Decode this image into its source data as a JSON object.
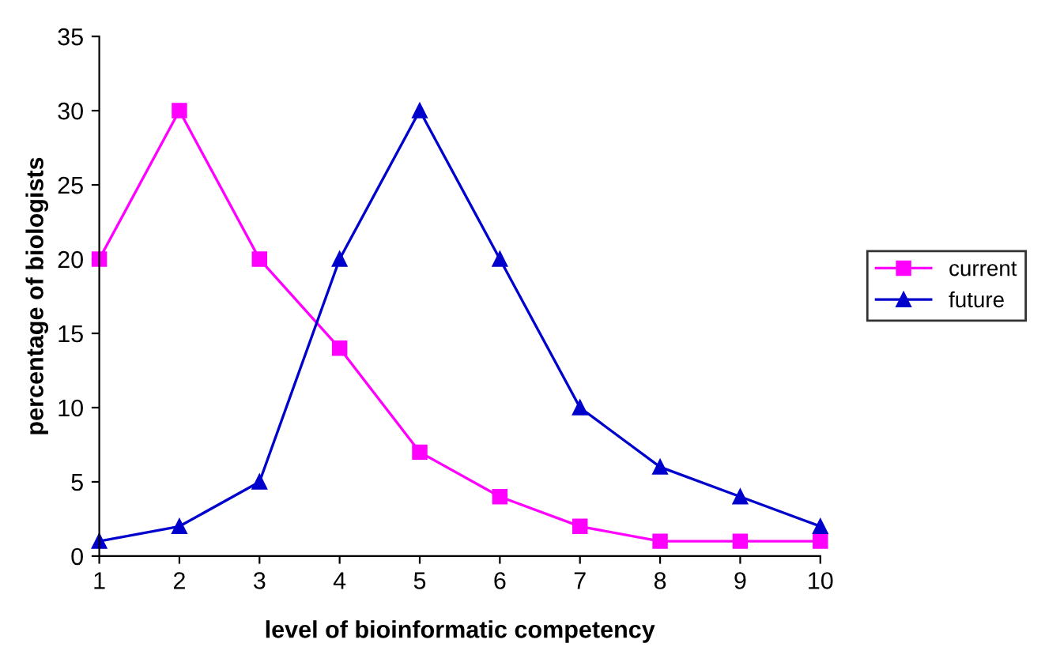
{
  "chart_data": {
    "type": "line",
    "xlabel": "level of bioinformatic competency",
    "ylabel": "percentage of biologists",
    "categories": [
      "1",
      "2",
      "3",
      "4",
      "5",
      "6",
      "7",
      "8",
      "9",
      "10"
    ],
    "series": [
      {
        "name": "current",
        "color": "#ff00ff",
        "marker": "square",
        "values": [
          20,
          30,
          20,
          14,
          7,
          4,
          2,
          1,
          1,
          1
        ]
      },
      {
        "name": "future",
        "color": "#0000cc",
        "marker": "triangle",
        "values": [
          1,
          2,
          5,
          20,
          30,
          20,
          10,
          6,
          4,
          2
        ]
      }
    ],
    "ylim": [
      0,
      35
    ],
    "yticks": [
      0,
      5,
      10,
      15,
      20,
      25,
      30,
      35
    ],
    "grid": false,
    "legend": "right",
    "line_style": "solid"
  }
}
